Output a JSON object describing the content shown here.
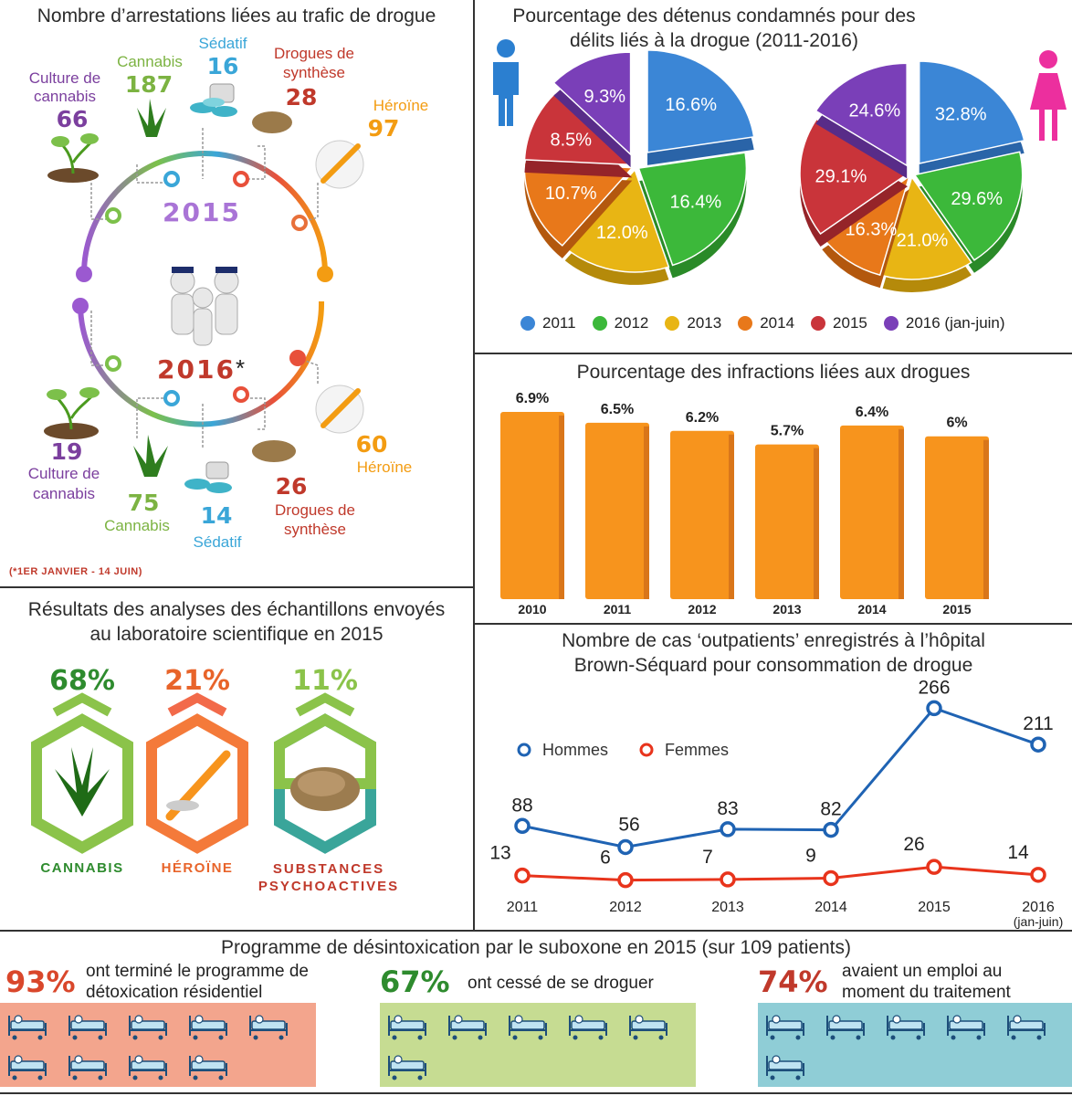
{
  "arrests": {
    "title": "Nombre d’arrestations liées au trafic de drogue",
    "year_top": "2015",
    "year_bottom": "2016",
    "year_bottom_mark": "*",
    "footnote": "(*1ER JANVIER - 14 JUIN)",
    "top": [
      {
        "label": "Culture de cannabis",
        "value": "66",
        "color": "#7b3f9e"
      },
      {
        "label": "Cannabis",
        "value": "187",
        "color": "#7cb342"
      },
      {
        "label": "Sédatif",
        "value": "16",
        "color": "#3aa6d8"
      },
      {
        "label": "Drogues de synthèse",
        "value": "28",
        "color": "#c0392b"
      },
      {
        "label": "Héroïne",
        "value": "97",
        "color": "#f39c12"
      }
    ],
    "bottom": [
      {
        "label": "Culture de cannabis",
        "value": "19",
        "color": "#7b3f9e"
      },
      {
        "label": "Cannabis",
        "value": "75",
        "color": "#7cb342"
      },
      {
        "label": "Sédatif",
        "value": "14",
        "color": "#3aa6d8"
      },
      {
        "label": "Drogues de synthèse",
        "value": "26",
        "color": "#c0392b"
      },
      {
        "label": "Héroïne",
        "value": "60",
        "color": "#f39c12"
      }
    ]
  },
  "detainees": {
    "title": "Pourcentage des détenus condamnés pour des délits liés à la drogue (2011-2016)",
    "legend": [
      "2011",
      "2012",
      "2013",
      "2014",
      "2015",
      "2016 (jan-juin)"
    ],
    "colors": [
      "#3b86d6",
      "#3cb83a",
      "#e8b514",
      "#e8781a",
      "#c9343a",
      "#7a3fb8"
    ]
  },
  "infractions": {
    "title": "Pourcentage des infractions liées aux drogues"
  },
  "lab": {
    "title": "Résultats des analyses des échantillons envoyés au laboratoire scientifique en 2015",
    "items": [
      {
        "pct": "68%",
        "label": "CANNABIS",
        "color": "#2e8b2e"
      },
      {
        "pct": "21%",
        "label": "HÉROÏNE",
        "color": "#e8642a"
      },
      {
        "pct": "11%",
        "label": "SUBSTANCES PSYCHOACTIVES",
        "color": "#c0392b"
      }
    ]
  },
  "outpatients": {
    "title": "Nombre de cas ‘outpatients’ enregistrés à l’hôpital Brown-Séquard pour consommation de drogue"
  },
  "suboxone": {
    "title": "Programme de désintoxication par le suboxone en 2015 (sur 109 patients)",
    "items": [
      {
        "pct": "93%",
        "text": "ont terminé le programme de détoxication résidentiel",
        "color": "#d9472b",
        "bg": "#f3a58d",
        "beds": 9
      },
      {
        "pct": "67%",
        "text": "ont cessé de se droguer",
        "color": "#2e8b2e",
        "bg": "#c6dc92",
        "beds": 6
      },
      {
        "pct": "74%",
        "text": "avaient un emploi au moment du traitement",
        "color": "#c0392b",
        "bg": "#8fcdd6",
        "beds": 6
      }
    ]
  },
  "chart_data": [
    {
      "type": "pie",
      "name": "Hommes",
      "categories": [
        "2011",
        "2012",
        "2013",
        "2014",
        "2015",
        "2016 (jan-juin)"
      ],
      "values": [
        16.6,
        16.4,
        12.0,
        10.7,
        8.5,
        9.3
      ],
      "labels": [
        "16.6%",
        "16.4%",
        "12.0%",
        "10.7%",
        "8.5%",
        "9.3%"
      ]
    },
    {
      "type": "pie",
      "name": "Femmes",
      "categories": [
        "2011",
        "2012",
        "2013",
        "2014",
        "2015",
        "2016 (jan-juin)"
      ],
      "values": [
        32.8,
        29.6,
        21.0,
        16.3,
        29.1,
        24.6
      ],
      "labels": [
        "32.8%",
        "29.6%",
        "21.0%",
        "16.3%",
        "29.1%",
        "24.6%"
      ]
    },
    {
      "type": "bar",
      "categories": [
        "2010",
        "2011",
        "2012",
        "2013",
        "2014",
        "2015"
      ],
      "values": [
        6.9,
        6.5,
        6.2,
        5.7,
        6.4,
        6.0
      ],
      "labels": [
        "6.9%",
        "6.5%",
        "6.2%",
        "5.7%",
        "6.4%",
        "6%"
      ],
      "color": "#f7941d"
    },
    {
      "type": "line",
      "categories": [
        "2011",
        "2012",
        "2013",
        "2014",
        "2015",
        "2016"
      ],
      "category_note": "(jan-juin)",
      "series": [
        {
          "name": "Hommes",
          "values": [
            88,
            56,
            83,
            82,
            266,
            211
          ],
          "color": "#1f63b3"
        },
        {
          "name": "Femmes",
          "values": [
            13,
            6,
            7,
            9,
            26,
            14
          ],
          "color": "#e8341c"
        }
      ]
    }
  ]
}
